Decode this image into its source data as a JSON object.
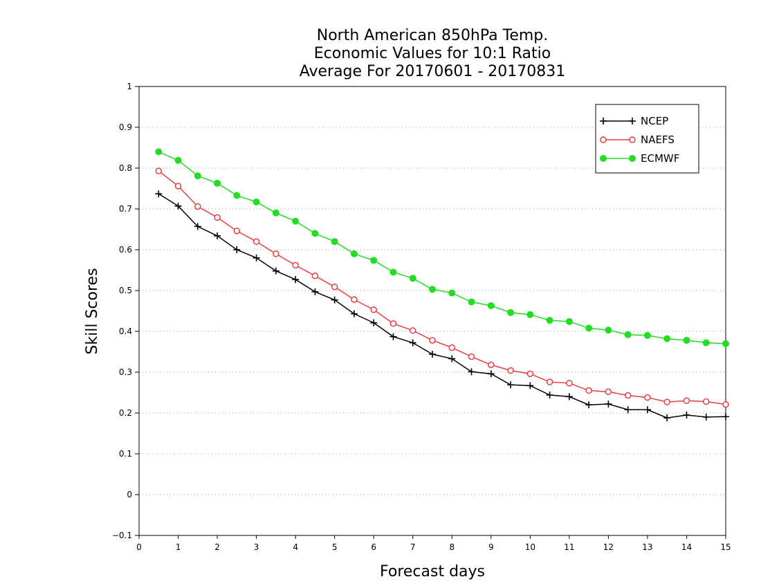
{
  "chart_data": {
    "type": "line",
    "title_lines": [
      "North American 850hPa Temp.",
      "Economic Values for 10:1 Ratio",
      "Average For 20170601 - 20170831"
    ],
    "xlabel": "Forecast days",
    "ylabel": "Skill Scores",
    "xlim": [
      0,
      15
    ],
    "ylim": [
      -0.1,
      1
    ],
    "xticks": [
      "0",
      "1",
      "2",
      "3",
      "4",
      "5",
      "6",
      "7",
      "8",
      "9",
      "10",
      "11",
      "12",
      "13",
      "14",
      "15"
    ],
    "yticks": [
      "−0.1",
      "0",
      "0.1",
      "0.2",
      "0.3",
      "0.4",
      "0.5",
      "0.6",
      "0.7",
      "0.8",
      "0.9",
      "1"
    ],
    "grid": "horizontal dotted",
    "legend_position": "top-right",
    "x": [
      0.5,
      1,
      1.5,
      2,
      2.5,
      3,
      3.5,
      4,
      4.5,
      5,
      5.5,
      6,
      6.5,
      7,
      7.5,
      8,
      8.5,
      9,
      9.5,
      10,
      10.5,
      11,
      11.5,
      12,
      12.5,
      13,
      13.5,
      14,
      14.5,
      15
    ],
    "series": [
      {
        "name": "NCEP",
        "color": "#000000",
        "marker": "plus",
        "values": [
          0.737,
          0.707,
          0.657,
          0.634,
          0.6,
          0.58,
          0.548,
          0.527,
          0.497,
          0.477,
          0.443,
          0.421,
          0.387,
          0.372,
          0.344,
          0.333,
          0.301,
          0.296,
          0.269,
          0.267,
          0.244,
          0.24,
          0.22,
          0.222,
          0.208,
          0.208,
          0.188,
          0.195,
          0.19,
          0.191
        ]
      },
      {
        "name": "NAEFS",
        "color": "#e83e3e",
        "marker": "open-circle",
        "values": [
          0.793,
          0.756,
          0.706,
          0.679,
          0.646,
          0.62,
          0.59,
          0.562,
          0.536,
          0.509,
          0.478,
          0.453,
          0.419,
          0.402,
          0.378,
          0.36,
          0.338,
          0.318,
          0.304,
          0.296,
          0.276,
          0.273,
          0.255,
          0.252,
          0.243,
          0.238,
          0.227,
          0.23,
          0.228,
          0.221
        ]
      },
      {
        "name": "ECMWF",
        "color": "#22dd22",
        "marker": "filled-circle",
        "values": [
          0.84,
          0.819,
          0.781,
          0.763,
          0.733,
          0.717,
          0.69,
          0.67,
          0.64,
          0.62,
          0.59,
          0.574,
          0.545,
          0.53,
          0.503,
          0.494,
          0.472,
          0.463,
          0.446,
          0.441,
          0.427,
          0.424,
          0.408,
          0.403,
          0.392,
          0.39,
          0.382,
          0.378,
          0.372,
          0.37
        ]
      }
    ]
  }
}
